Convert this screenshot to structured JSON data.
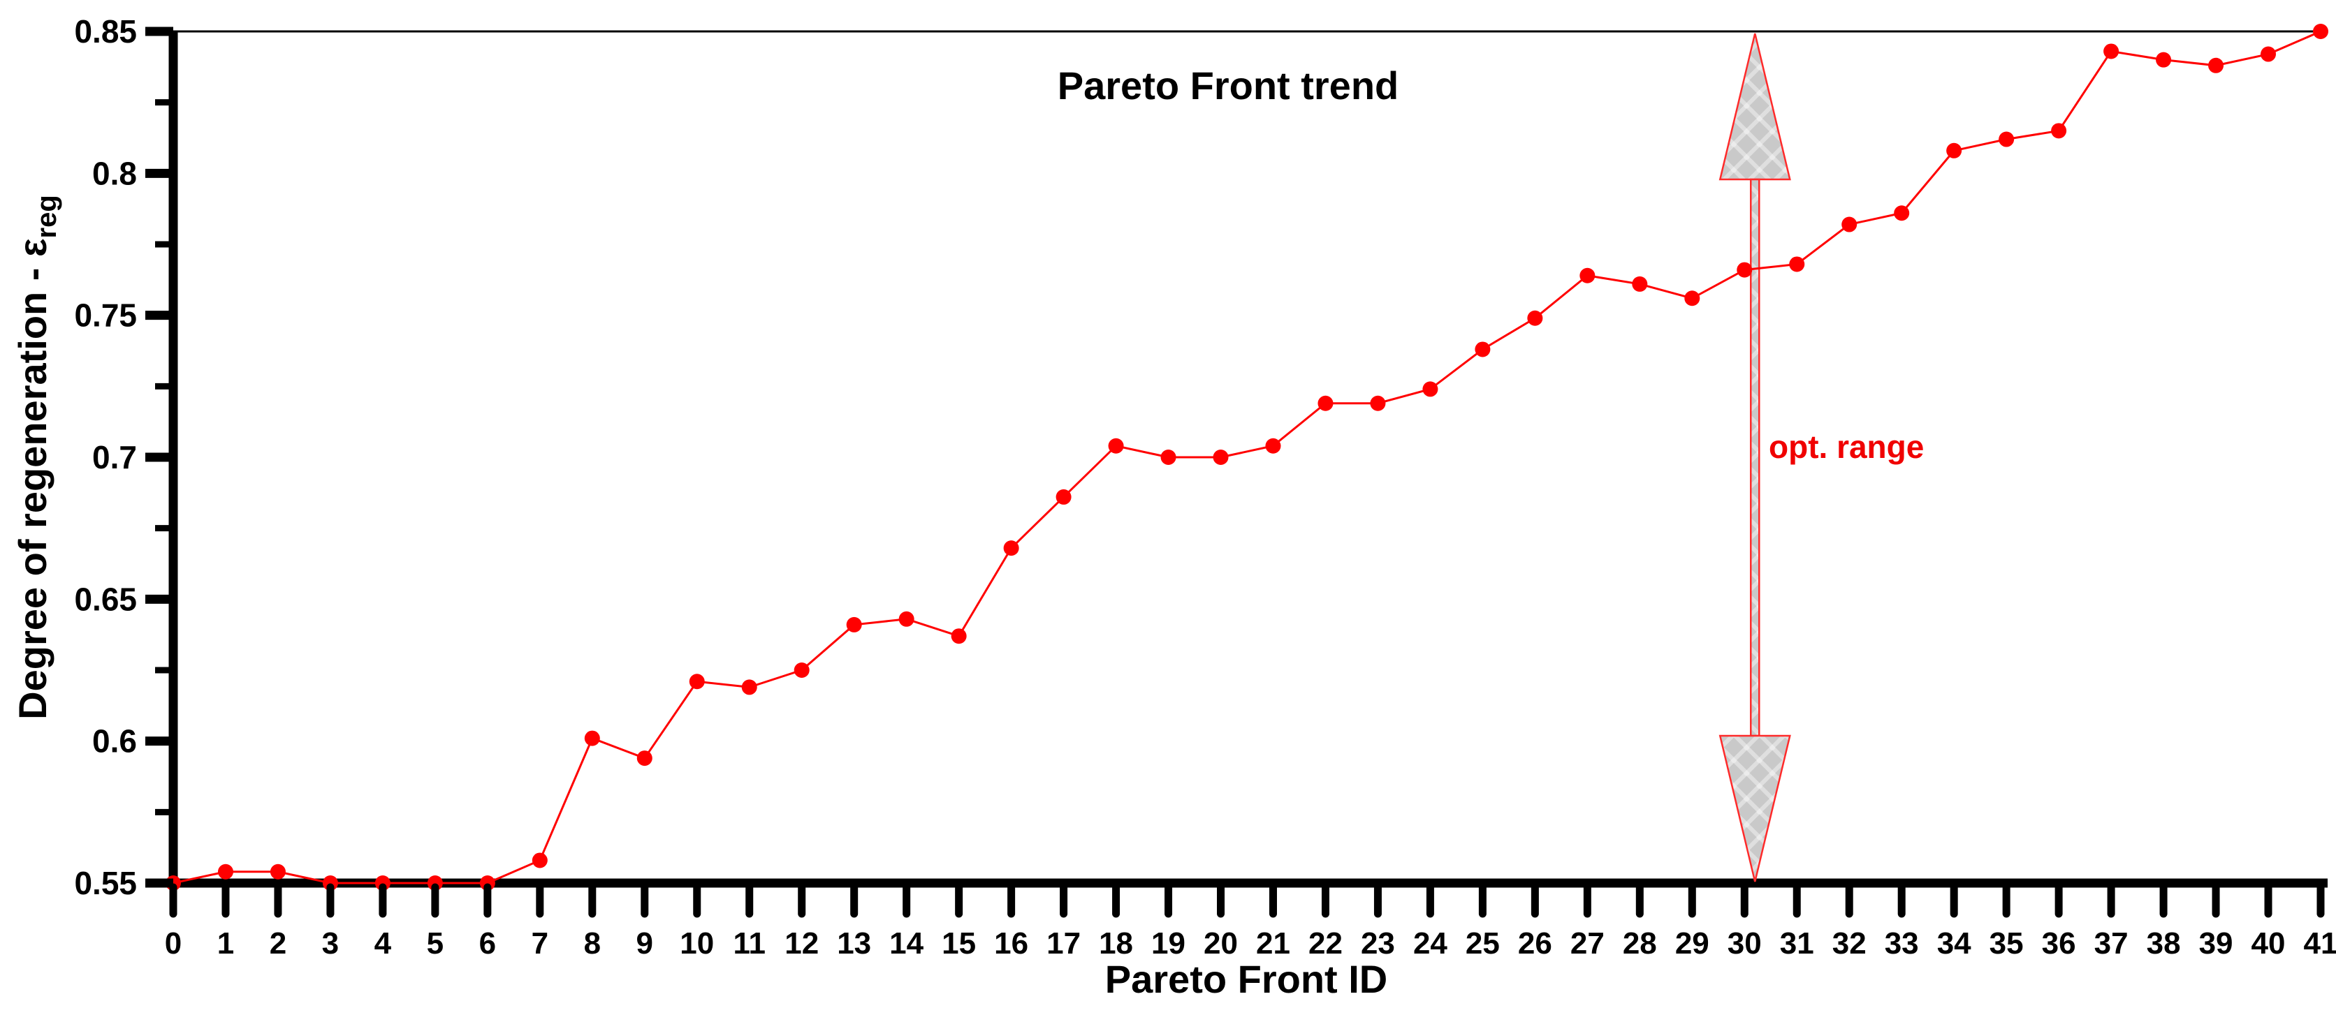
{
  "chart_data": {
    "type": "line",
    "title": "Pareto Front trend",
    "xlabel": "Pareto Front ID",
    "ylabel": "Degree of regeneration - ε",
    "ylabel_subscript": "reg",
    "series_name": "Pareto Front trend",
    "series_color": "#ff0000",
    "marker": "filled-circle",
    "x": [
      0,
      1,
      2,
      3,
      4,
      5,
      6,
      7,
      8,
      9,
      10,
      11,
      12,
      13,
      14,
      15,
      16,
      17,
      18,
      19,
      20,
      21,
      22,
      23,
      24,
      25,
      26,
      27,
      28,
      29,
      30,
      31,
      32,
      33,
      34,
      35,
      36,
      37,
      38,
      39,
      40,
      41
    ],
    "values": [
      0.55,
      0.554,
      0.554,
      0.55,
      0.55,
      0.55,
      0.55,
      0.558,
      0.601,
      0.594,
      0.621,
      0.619,
      0.625,
      0.641,
      0.643,
      0.637,
      0.668,
      0.686,
      0.704,
      0.7,
      0.7,
      0.704,
      0.719,
      0.719,
      0.724,
      0.738,
      0.749,
      0.764,
      0.761,
      0.756,
      0.766,
      0.768,
      0.782,
      0.786,
      0.808,
      0.812,
      0.815,
      0.843,
      0.84,
      0.838,
      0.842,
      0.85
    ],
    "xlim": [
      0,
      41
    ],
    "ylim": [
      0.55,
      0.85
    ],
    "x_tick_labels": [
      "0",
      "1",
      "2",
      "3",
      "4",
      "5",
      "6",
      "7",
      "8",
      "9",
      "10",
      "11",
      "12",
      "13",
      "14",
      "15",
      "16",
      "17",
      "18",
      "19",
      "20",
      "21",
      "22",
      "23",
      "24",
      "25",
      "26",
      "27",
      "28",
      "29",
      "30",
      "31",
      "32",
      "33",
      "34",
      "35",
      "36",
      "37",
      "38",
      "39",
      "40",
      "41"
    ],
    "y_tick_values": [
      0.55,
      0.6,
      0.65,
      0.7,
      0.75,
      0.8,
      0.85
    ],
    "y_tick_labels": [
      "0.55",
      "0.6",
      "0.65",
      "0.7",
      "0.75",
      "0.8",
      "0.85"
    ],
    "y_minor_tick_values": [
      0.575,
      0.625,
      0.675,
      0.725,
      0.775,
      0.825
    ],
    "grid": "off",
    "top_border_value": 0.85,
    "legend": "none",
    "annotation": {
      "label": "opt. range",
      "label_color": "#f00000",
      "type": "vertical-double-headed-arrow",
      "x_position": 30.2,
      "value_span": [
        0.55,
        0.85
      ],
      "fill": "gray-crosshatch",
      "outline_color": "#ff2a2a"
    }
  }
}
